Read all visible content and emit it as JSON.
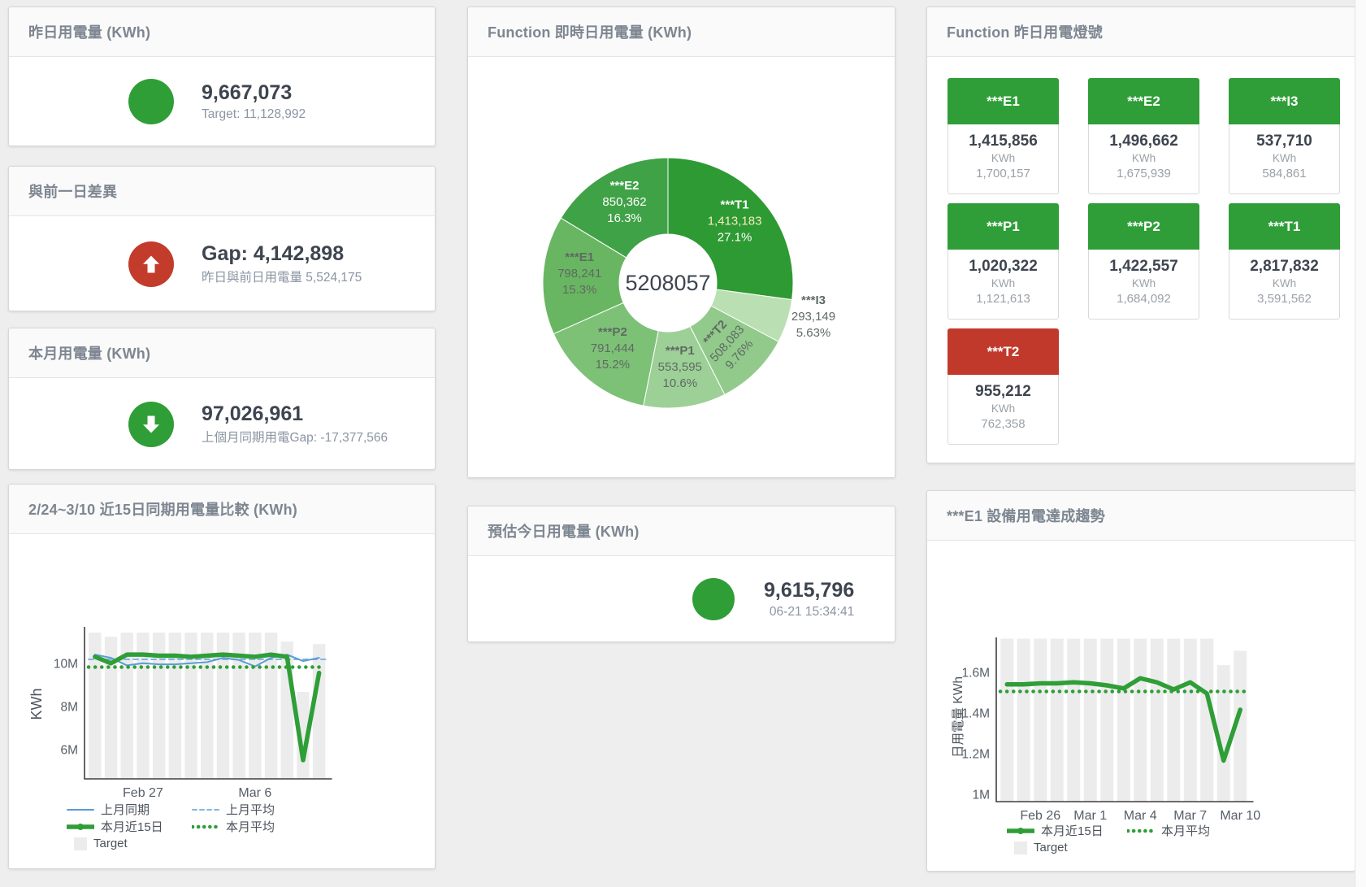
{
  "page": {
    "background": "#efeeef"
  },
  "stat_cards": {
    "yesterday": {
      "title": "昨日用電量 (KWh)",
      "value": "9,667,073",
      "subtitle": "Target: 11,128,992",
      "indicator": "circle",
      "color": "#2f9e37"
    },
    "diff_prev_day": {
      "title": "與前一日差異",
      "value": "Gap: 4,142,898",
      "subtitle": "昨日與前日用電量 5,524,175",
      "indicator": "arrow-up",
      "color": "#c33c2b"
    },
    "month": {
      "title": "本月用電量 (KWh)",
      "value": "97,026,961",
      "subtitle": "上個月同期用電Gap: -17,377,566",
      "indicator": "arrow-down",
      "color": "#2f9e37"
    },
    "today_forecast": {
      "title": "預估今日用電量 (KWh)",
      "value": "9,615,796",
      "subtitle": "06-21 15:34:41",
      "indicator": "circle",
      "color": "#2f9e37"
    }
  },
  "lights": {
    "title": "Function 昨日用電燈號",
    "green": "#2f9e38",
    "red": "#c0392b",
    "tiles": [
      {
        "label": "***E1",
        "value": "1,415,856",
        "unit": "KWh",
        "target": "1,700,157",
        "status": "green"
      },
      {
        "label": "***E2",
        "value": "1,496,662",
        "unit": "KWh",
        "target": "1,675,939",
        "status": "green"
      },
      {
        "label": "***I3",
        "value": "537,710",
        "unit": "KWh",
        "target": "584,861",
        "status": "green"
      },
      {
        "label": "***P1",
        "value": "1,020,322",
        "unit": "KWh",
        "target": "1,121,613",
        "status": "green"
      },
      {
        "label": "***P2",
        "value": "1,422,557",
        "unit": "KWh",
        "target": "1,684,092",
        "status": "green"
      },
      {
        "label": "***T1",
        "value": "2,817,832",
        "unit": "KWh",
        "target": "3,591,562",
        "status": "green"
      },
      {
        "label": "***T2",
        "value": "955,212",
        "unit": "KWh",
        "target": "762,358",
        "status": "red"
      }
    ]
  },
  "chart_data": [
    {
      "id": "realtime_donut",
      "type": "pie",
      "title": "Function 即時日用電量 (KWh)",
      "center_total": "5208057",
      "segments": [
        {
          "name": "***T1",
          "value": 1413183,
          "display": "1,413,183",
          "pct": "27.1%",
          "color": "#2e9a33",
          "text": "#ffffff",
          "value_text": "#f3ecc1"
        },
        {
          "name": "***I3",
          "value": 293149,
          "display": "293,149",
          "pct": "5.63%",
          "color": "#badfb3",
          "text": "#5f6a62",
          "outside": true
        },
        {
          "name": "***T2",
          "value": 508083,
          "display": "508,083",
          "pct": "9.76%",
          "color": "#92ca8c",
          "text": "#5f6a62",
          "rotate": -48
        },
        {
          "name": "***P1",
          "value": 553595,
          "display": "553,595",
          "pct": "10.6%",
          "color": "#9dd097",
          "text": "#5f6a62"
        },
        {
          "name": "***P2",
          "value": 791444,
          "display": "791,444",
          "pct": "15.2%",
          "color": "#7dc177",
          "text": "#5f6a62"
        },
        {
          "name": "***E1",
          "value": 798241,
          "display": "798,241",
          "pct": "15.3%",
          "color": "#69b662",
          "text": "#5f6a62"
        },
        {
          "name": "***E2",
          "value": 850362,
          "display": "850,362",
          "pct": "16.3%",
          "color": "#40a247",
          "text": "#ffffff"
        }
      ]
    },
    {
      "id": "compare15",
      "type": "line+bar",
      "title": "2/24~3/10 近15日同期用電量比較 (KWh)",
      "ylabel": "KWh",
      "ylim": [
        4.68,
        11.74
      ],
      "yticks": [
        {
          "v": 6,
          "label": "6M"
        },
        {
          "v": 8,
          "label": "8M"
        },
        {
          "v": 10,
          "label": "10M"
        }
      ],
      "xticks": [
        {
          "i": 3,
          "label": "Feb 27"
        },
        {
          "i": 10,
          "label": "Mar 6"
        }
      ],
      "x_count": 15,
      "series": [
        {
          "name": "Target",
          "kind": "bar",
          "color": "#ececec",
          "values": [
            11.47,
            11.28,
            11.47,
            11.47,
            11.47,
            11.47,
            11.47,
            11.47,
            11.47,
            11.47,
            11.47,
            11.47,
            11.06,
            8.72,
            10.94
          ]
        },
        {
          "name": "上月平均",
          "kind": "line",
          "dash": "dashed",
          "color": "#85b6e0",
          "width": 2,
          "value": 10.23
        },
        {
          "name": "上月同期",
          "kind": "line",
          "dash": "solid",
          "color": "#5b9bd5",
          "width": 2,
          "values": [
            10.45,
            10.3,
            9.95,
            10.05,
            10.0,
            10.0,
            10.05,
            10.1,
            10.3,
            10.2,
            9.9,
            10.3,
            10.45,
            10.15,
            10.3
          ]
        },
        {
          "name": "本月平均",
          "kind": "line",
          "dash": "dotted",
          "color": "#2f9e37",
          "width": 4.5,
          "value": 9.87
        },
        {
          "name": "本月近15日",
          "kind": "line",
          "dash": "solid",
          "color": "#2f9e37",
          "width": 5.5,
          "values": [
            10.35,
            10.05,
            10.45,
            10.45,
            10.4,
            10.4,
            10.35,
            10.4,
            10.45,
            10.4,
            10.35,
            10.45,
            10.35,
            5.55,
            9.6
          ]
        }
      ],
      "legend": [
        [
          "上月同期",
          "上月平均"
        ],
        [
          "本月近15日",
          "本月平均"
        ],
        [
          "Target"
        ]
      ]
    },
    {
      "id": "e1_trend",
      "type": "line+bar",
      "title": "***E1 設備用電達成趨勢",
      "ylabel": "日用電量 KWh",
      "ylim": [
        0.968,
        1.776
      ],
      "yticks": [
        {
          "v": 1.0,
          "label": "1M"
        },
        {
          "v": 1.2,
          "label": "1.2M"
        },
        {
          "v": 1.4,
          "label": "1.4M"
        },
        {
          "v": 1.6,
          "label": "1.6M"
        }
      ],
      "xticks": [
        {
          "i": 2,
          "label": "Feb 26"
        },
        {
          "i": 5,
          "label": "Mar 1"
        },
        {
          "i": 8,
          "label": "Mar 4"
        },
        {
          "i": 11,
          "label": "Mar 7"
        },
        {
          "i": 14,
          "label": "Mar 10"
        }
      ],
      "x_count": 15,
      "series": [
        {
          "name": "Target",
          "kind": "bar",
          "color": "#ececec",
          "values": [
            1.77,
            1.77,
            1.77,
            1.77,
            1.77,
            1.77,
            1.77,
            1.77,
            1.77,
            1.77,
            1.77,
            1.77,
            1.77,
            1.64,
            1.71
          ]
        },
        {
          "name": "本月平均",
          "kind": "line",
          "dash": "dotted",
          "color": "#2f9e37",
          "width": 4.5,
          "value": 1.51
        },
        {
          "name": "本月近15日",
          "kind": "line",
          "dash": "solid",
          "color": "#2f9e37",
          "width": 5.5,
          "values": [
            1.545,
            1.545,
            1.55,
            1.55,
            1.555,
            1.55,
            1.54,
            1.525,
            1.575,
            1.555,
            1.52,
            1.555,
            1.5,
            1.17,
            1.42
          ]
        }
      ],
      "legend": [
        [
          "本月近15日",
          "本月平均"
        ],
        [
          "Target"
        ]
      ]
    }
  ]
}
